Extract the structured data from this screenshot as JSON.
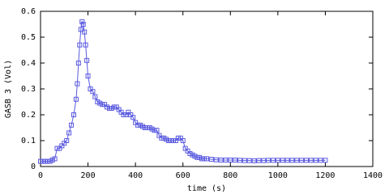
{
  "chart_data": {
    "type": "line",
    "xlabel": "time (s)",
    "ylabel": "GASB 3 (Vol)",
    "xlim": [
      0,
      1400
    ],
    "xticks": [
      0,
      200,
      400,
      600,
      800,
      1000,
      1200,
      1400
    ],
    "ylim": [
      0,
      0.6
    ],
    "yticks": [
      0,
      0.1,
      0.2,
      0.3,
      0.4,
      0.5,
      0.6
    ],
    "series": [
      {
        "color": "#5a5ae0",
        "marker": "square",
        "x": [
          0,
          10,
          20,
          30,
          40,
          50,
          60,
          70,
          80,
          90,
          100,
          110,
          120,
          130,
          140,
          150,
          155,
          160,
          165,
          170,
          175,
          180,
          185,
          190,
          195,
          200,
          210,
          220,
          230,
          240,
          250,
          260,
          270,
          280,
          290,
          300,
          310,
          320,
          330,
          340,
          350,
          360,
          370,
          380,
          390,
          400,
          410,
          420,
          430,
          440,
          450,
          460,
          470,
          480,
          490,
          500,
          510,
          520,
          530,
          540,
          550,
          560,
          570,
          580,
          590,
          600,
          610,
          620,
          630,
          640,
          650,
          660,
          670,
          680,
          690,
          700,
          720,
          740,
          760,
          780,
          800,
          820,
          840,
          860,
          880,
          900,
          920,
          940,
          960,
          980,
          1000,
          1020,
          1040,
          1060,
          1080,
          1100,
          1120,
          1140,
          1160,
          1180,
          1200
        ],
        "values": [
          0.02,
          0.02,
          0.02,
          0.02,
          0.02,
          0.025,
          0.03,
          0.07,
          0.07,
          0.08,
          0.09,
          0.1,
          0.13,
          0.16,
          0.2,
          0.26,
          0.32,
          0.4,
          0.47,
          0.53,
          0.56,
          0.55,
          0.52,
          0.47,
          0.41,
          0.35,
          0.3,
          0.29,
          0.27,
          0.25,
          0.245,
          0.24,
          0.24,
          0.23,
          0.225,
          0.225,
          0.23,
          0.23,
          0.22,
          0.21,
          0.2,
          0.2,
          0.21,
          0.2,
          0.19,
          0.17,
          0.16,
          0.16,
          0.155,
          0.15,
          0.15,
          0.15,
          0.145,
          0.14,
          0.14,
          0.12,
          0.11,
          0.11,
          0.105,
          0.1,
          0.1,
          0.1,
          0.1,
          0.11,
          0.11,
          0.1,
          0.07,
          0.06,
          0.05,
          0.045,
          0.04,
          0.035,
          0.035,
          0.03,
          0.03,
          0.03,
          0.028,
          0.026,
          0.025,
          0.025,
          0.025,
          0.025,
          0.024,
          0.023,
          0.023,
          0.022,
          0.023,
          0.023,
          0.024,
          0.024,
          0.024,
          0.024,
          0.024,
          0.024,
          0.024,
          0.024,
          0.024,
          0.024,
          0.024,
          0.024,
          0.024
        ]
      }
    ]
  }
}
